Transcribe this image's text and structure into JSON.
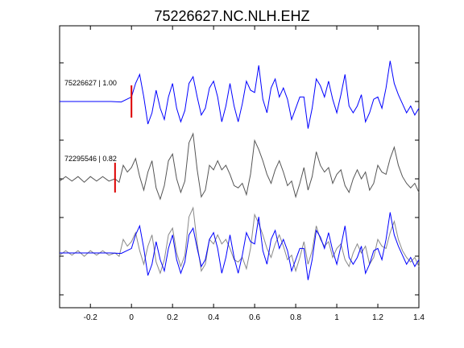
{
  "chart_data": {
    "type": "line",
    "title": "75226627.NC.NLH.EHZ",
    "xlabel": "",
    "ylabel": "",
    "xlim": [
      -0.35,
      1.4
    ],
    "xticks": [
      -0.2,
      0,
      0.2,
      0.4,
      0.6,
      0.8,
      1,
      1.2,
      1.4
    ],
    "xtick_labels": [
      "-0.2",
      "0",
      "0.2",
      "0.4",
      "0.6",
      "0.8",
      "1",
      "1.2",
      "1.4"
    ],
    "grid": false,
    "colors": {
      "blue": "#0000ff",
      "gray": "#555555",
      "lightgray": "#888888",
      "pick": "#dd0000",
      "axis": "#000000"
    },
    "traces": [
      {
        "label": "75226627 | 1.00",
        "color": "#0000ff",
        "pick_time": 0.0,
        "points": [
          [
            -0.35,
            0
          ],
          [
            -0.2,
            0
          ],
          [
            -0.1,
            0
          ],
          [
            -0.05,
            -0.02
          ],
          [
            0,
            0.2
          ],
          [
            0.02,
            0.8
          ],
          [
            0.04,
            1.2
          ],
          [
            0.06,
            0.2
          ],
          [
            0.08,
            -1.0
          ],
          [
            0.1,
            -0.5
          ],
          [
            0.12,
            0.5
          ],
          [
            0.14,
            -0.3
          ],
          [
            0.16,
            -0.8
          ],
          [
            0.18,
            0.2
          ],
          [
            0.2,
            0.8
          ],
          [
            0.22,
            -0.3
          ],
          [
            0.24,
            -0.9
          ],
          [
            0.26,
            -0.4
          ],
          [
            0.28,
            0.8
          ],
          [
            0.3,
            1.1
          ],
          [
            0.32,
            0.2
          ],
          [
            0.34,
            -0.6
          ],
          [
            0.36,
            -0.3
          ],
          [
            0.38,
            0.6
          ],
          [
            0.4,
            0.9
          ],
          [
            0.42,
            0.2
          ],
          [
            0.44,
            -0.9
          ],
          [
            0.46,
            -0.2
          ],
          [
            0.48,
            0.8
          ],
          [
            0.5,
            -0.2
          ],
          [
            0.52,
            -0.9
          ],
          [
            0.54,
            -0.1
          ],
          [
            0.56,
            0.9
          ],
          [
            0.58,
            0.5
          ],
          [
            0.6,
            0.4
          ],
          [
            0.62,
            1.6
          ],
          [
            0.64,
            0.1
          ],
          [
            0.66,
            -0.5
          ],
          [
            0.68,
            0.6
          ],
          [
            0.7,
            1.0
          ],
          [
            0.72,
            0.2
          ],
          [
            0.74,
            0.6
          ],
          [
            0.76,
            0.1
          ],
          [
            0.78,
            -0.8
          ],
          [
            0.8,
            -0.3
          ],
          [
            0.82,
            0.2
          ],
          [
            0.84,
            0.2
          ],
          [
            0.86,
            -1.2
          ],
          [
            0.88,
            -0.3
          ],
          [
            0.9,
            1.0
          ],
          [
            0.92,
            0.7
          ],
          [
            0.94,
            0.2
          ],
          [
            0.96,
            0.9
          ],
          [
            0.98,
            0.1
          ],
          [
            1.0,
            -0.5
          ],
          [
            1.02,
            0.3
          ],
          [
            1.04,
            1.2
          ],
          [
            1.06,
            -0.2
          ],
          [
            1.08,
            -0.5
          ],
          [
            1.1,
            -0.2
          ],
          [
            1.12,
            0.3
          ],
          [
            1.14,
            -0.9
          ],
          [
            1.16,
            -0.5
          ],
          [
            1.18,
            0.1
          ],
          [
            1.2,
            0.2
          ],
          [
            1.22,
            -0.3
          ],
          [
            1.24,
            0.6
          ],
          [
            1.26,
            1.8
          ],
          [
            1.28,
            0.8
          ],
          [
            1.3,
            0.3
          ],
          [
            1.32,
            -0.1
          ],
          [
            1.34,
            -0.5
          ],
          [
            1.36,
            -0.2
          ],
          [
            1.38,
            -0.6
          ],
          [
            1.4,
            -0.3
          ]
        ]
      },
      {
        "label": "72295546 | 0.82",
        "color": "#555555",
        "pick_time": -0.08,
        "points": [
          [
            -0.35,
            -0.1
          ],
          [
            -0.32,
            0.1
          ],
          [
            -0.29,
            -0.1
          ],
          [
            -0.26,
            0.1
          ],
          [
            -0.23,
            -0.15
          ],
          [
            -0.2,
            0.1
          ],
          [
            -0.17,
            -0.1
          ],
          [
            -0.14,
            0.1
          ],
          [
            -0.11,
            -0.1
          ],
          [
            -0.08,
            0.0
          ],
          [
            -0.06,
            -0.15
          ],
          [
            -0.04,
            0.6
          ],
          [
            -0.02,
            0.3
          ],
          [
            0.0,
            0.5
          ],
          [
            0.02,
            0.9
          ],
          [
            0.04,
            0.1
          ],
          [
            0.06,
            -0.5
          ],
          [
            0.08,
            0.3
          ],
          [
            0.1,
            0.8
          ],
          [
            0.12,
            -0.4
          ],
          [
            0.14,
            -0.9
          ],
          [
            0.16,
            -0.3
          ],
          [
            0.18,
            0.8
          ],
          [
            0.2,
            1.1
          ],
          [
            0.22,
            0.0
          ],
          [
            0.24,
            -0.6
          ],
          [
            0.26,
            -0.1
          ],
          [
            0.28,
            1.6
          ],
          [
            0.3,
            2.0
          ],
          [
            0.32,
            0.4
          ],
          [
            0.34,
            -0.8
          ],
          [
            0.36,
            -0.5
          ],
          [
            0.38,
            0.6
          ],
          [
            0.4,
            0.4
          ],
          [
            0.42,
            0.8
          ],
          [
            0.44,
            0.4
          ],
          [
            0.46,
            0.6
          ],
          [
            0.48,
            0.2
          ],
          [
            0.5,
            -0.3
          ],
          [
            0.52,
            -0.4
          ],
          [
            0.54,
            -0.2
          ],
          [
            0.56,
            -0.7
          ],
          [
            0.58,
            0.2
          ],
          [
            0.6,
            1.7
          ],
          [
            0.62,
            1.3
          ],
          [
            0.64,
            0.8
          ],
          [
            0.66,
            0.2
          ],
          [
            0.68,
            -0.2
          ],
          [
            0.7,
            0.4
          ],
          [
            0.72,
            0.8
          ],
          [
            0.74,
            0.3
          ],
          [
            0.76,
            -0.3
          ],
          [
            0.78,
            -0.1
          ],
          [
            0.8,
            -0.8
          ],
          [
            0.82,
            -0.2
          ],
          [
            0.84,
            0.5
          ],
          [
            0.86,
            -0.5
          ],
          [
            0.88,
            0.1
          ],
          [
            0.9,
            1.2
          ],
          [
            0.92,
            0.6
          ],
          [
            0.94,
            0.3
          ],
          [
            0.96,
            0.5
          ],
          [
            0.98,
            -0.2
          ],
          [
            1.0,
            0.2
          ],
          [
            1.02,
            0.4
          ],
          [
            1.04,
            -0.3
          ],
          [
            1.06,
            -0.6
          ],
          [
            1.08,
            0.0
          ],
          [
            1.1,
            0.4
          ],
          [
            1.12,
            0.0
          ],
          [
            1.14,
            0.3
          ],
          [
            1.16,
            -0.5
          ],
          [
            1.18,
            -0.2
          ],
          [
            1.2,
            0.6
          ],
          [
            1.22,
            0.3
          ],
          [
            1.24,
            0.2
          ],
          [
            1.26,
            0.9
          ],
          [
            1.28,
            1.4
          ],
          [
            1.3,
            0.6
          ],
          [
            1.32,
            0.1
          ],
          [
            1.34,
            -0.2
          ],
          [
            1.36,
            -0.4
          ],
          [
            1.38,
            -0.2
          ],
          [
            1.4,
            -0.6
          ]
        ]
      }
    ]
  }
}
